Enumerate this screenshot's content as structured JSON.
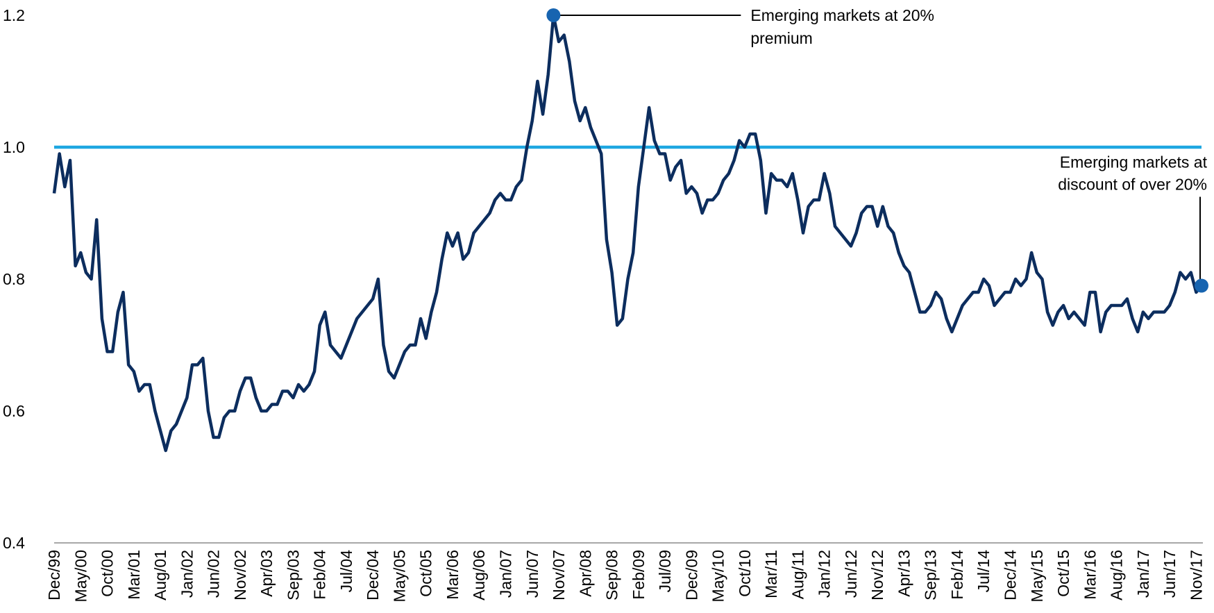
{
  "chart_data": {
    "type": "line",
    "categories": [
      "Dec/99",
      null,
      null,
      null,
      null,
      "May/00",
      null,
      null,
      null,
      null,
      "Oct/00",
      null,
      null,
      null,
      null,
      "Mar/01",
      null,
      null,
      null,
      null,
      "Aug/01",
      null,
      null,
      null,
      null,
      "Jan/02",
      null,
      null,
      null,
      null,
      "Jun/02",
      null,
      null,
      null,
      null,
      "Nov/02",
      null,
      null,
      null,
      null,
      "Apr/03",
      null,
      null,
      null,
      null,
      "Sep/03",
      null,
      null,
      null,
      null,
      "Feb/04",
      null,
      null,
      null,
      null,
      "Jul/04",
      null,
      null,
      null,
      null,
      "Dec/04",
      null,
      null,
      null,
      null,
      "May/05",
      null,
      null,
      null,
      null,
      "Oct/05",
      null,
      null,
      null,
      null,
      "Mar/06",
      null,
      null,
      null,
      null,
      "Aug/06",
      null,
      null,
      null,
      null,
      "Jan/07",
      null,
      null,
      null,
      null,
      "Jun/07",
      null,
      null,
      null,
      null,
      "Nov/07",
      null,
      null,
      null,
      null,
      "Apr/08",
      null,
      null,
      null,
      null,
      "Sep/08",
      null,
      null,
      null,
      null,
      "Feb/09",
      null,
      null,
      null,
      null,
      "Jul/09",
      null,
      null,
      null,
      null,
      "Dec/09",
      null,
      null,
      null,
      null,
      "May/10",
      null,
      null,
      null,
      null,
      "Oct/10",
      null,
      null,
      null,
      null,
      "Mar/11",
      null,
      null,
      null,
      null,
      "Aug/11",
      null,
      null,
      null,
      null,
      "Jan/12",
      null,
      null,
      null,
      null,
      "Jun/12",
      null,
      null,
      null,
      null,
      "Nov/12",
      null,
      null,
      null,
      null,
      "Apr/13",
      null,
      null,
      null,
      null,
      "Sep/13",
      null,
      null,
      null,
      null,
      "Feb/14",
      null,
      null,
      null,
      null,
      "Jul/14",
      null,
      null,
      null,
      null,
      "Dec/14",
      null,
      null,
      null,
      null,
      "May/15",
      null,
      null,
      null,
      null,
      "Oct/15",
      null,
      null,
      null,
      null,
      "Mar/16",
      null,
      null,
      null,
      null,
      "Aug/16",
      null,
      null,
      null,
      null,
      "Jan/17",
      null,
      null,
      null,
      null,
      "Jun/17",
      null,
      null,
      null,
      null,
      "Nov/17",
      null
    ],
    "series": [
      {
        "color": "#0c2d5e",
        "values": [
          0.93,
          0.99,
          0.94,
          0.98,
          0.82,
          0.84,
          0.81,
          0.8,
          0.89,
          0.74,
          0.69,
          0.69,
          0.75,
          0.78,
          0.67,
          0.66,
          0.63,
          0.64,
          0.64,
          0.6,
          0.57,
          0.54,
          0.57,
          0.58,
          0.6,
          0.62,
          0.67,
          0.67,
          0.68,
          0.6,
          0.56,
          0.56,
          0.59,
          0.6,
          0.6,
          0.63,
          0.65,
          0.65,
          0.62,
          0.6,
          0.6,
          0.61,
          0.61,
          0.63,
          0.63,
          0.62,
          0.64,
          0.63,
          0.64,
          0.66,
          0.73,
          0.75,
          0.7,
          0.69,
          0.68,
          0.7,
          0.72,
          0.74,
          0.75,
          0.76,
          0.77,
          0.8,
          0.7,
          0.66,
          0.65,
          0.67,
          0.69,
          0.7,
          0.7,
          0.74,
          0.71,
          0.75,
          0.78,
          0.83,
          0.87,
          0.85,
          0.87,
          0.83,
          0.84,
          0.87,
          0.88,
          0.89,
          0.9,
          0.92,
          0.93,
          0.92,
          0.92,
          0.94,
          0.95,
          1.0,
          1.04,
          1.1,
          1.05,
          1.11,
          1.2,
          1.16,
          1.17,
          1.13,
          1.07,
          1.04,
          1.06,
          1.03,
          1.01,
          0.99,
          0.86,
          0.81,
          0.73,
          0.74,
          0.8,
          0.84,
          0.94,
          1.0,
          1.06,
          1.01,
          0.99,
          0.99,
          0.95,
          0.97,
          0.98,
          0.93,
          0.94,
          0.93,
          0.9,
          0.92,
          0.92,
          0.93,
          0.95,
          0.96,
          0.98,
          1.01,
          1.0,
          1.02,
          1.02,
          0.98,
          0.9,
          0.96,
          0.95,
          0.95,
          0.94,
          0.96,
          0.92,
          0.87,
          0.91,
          0.92,
          0.92,
          0.96,
          0.93,
          0.88,
          0.87,
          0.86,
          0.85,
          0.87,
          0.9,
          0.91,
          0.91,
          0.88,
          0.91,
          0.88,
          0.87,
          0.84,
          0.82,
          0.81,
          0.78,
          0.75,
          0.75,
          0.76,
          0.78,
          0.77,
          0.74,
          0.72,
          0.74,
          0.76,
          0.77,
          0.78,
          0.78,
          0.8,
          0.79,
          0.76,
          0.77,
          0.78,
          0.78,
          0.8,
          0.79,
          0.8,
          0.84,
          0.81,
          0.8,
          0.75,
          0.73,
          0.75,
          0.76,
          0.74,
          0.75,
          0.74,
          0.73,
          0.78,
          0.78,
          0.72,
          0.75,
          0.76,
          0.76,
          0.76,
          0.77,
          0.74,
          0.72,
          0.75,
          0.74,
          0.75,
          0.75,
          0.75,
          0.76,
          0.78,
          0.81,
          0.8,
          0.81,
          0.78,
          0.79
        ]
      }
    ],
    "ylim": [
      0.4,
      1.2
    ],
    "yticks": [
      0.4,
      0.6,
      0.8,
      {
        "value": 1,
        "label": "1.0"
      },
      1.2
    ],
    "reference_lines": [
      {
        "value": 1,
        "color": "#1ea7e1"
      }
    ],
    "marker_color": "#1764b0",
    "annotations": [
      {
        "lines": [
          "Emerging markets at 20%",
          "premium"
        ],
        "index": 94
      },
      {
        "lines": [
          "Emerging markets at",
          "discount of over 20%"
        ],
        "index": 216
      }
    ]
  }
}
